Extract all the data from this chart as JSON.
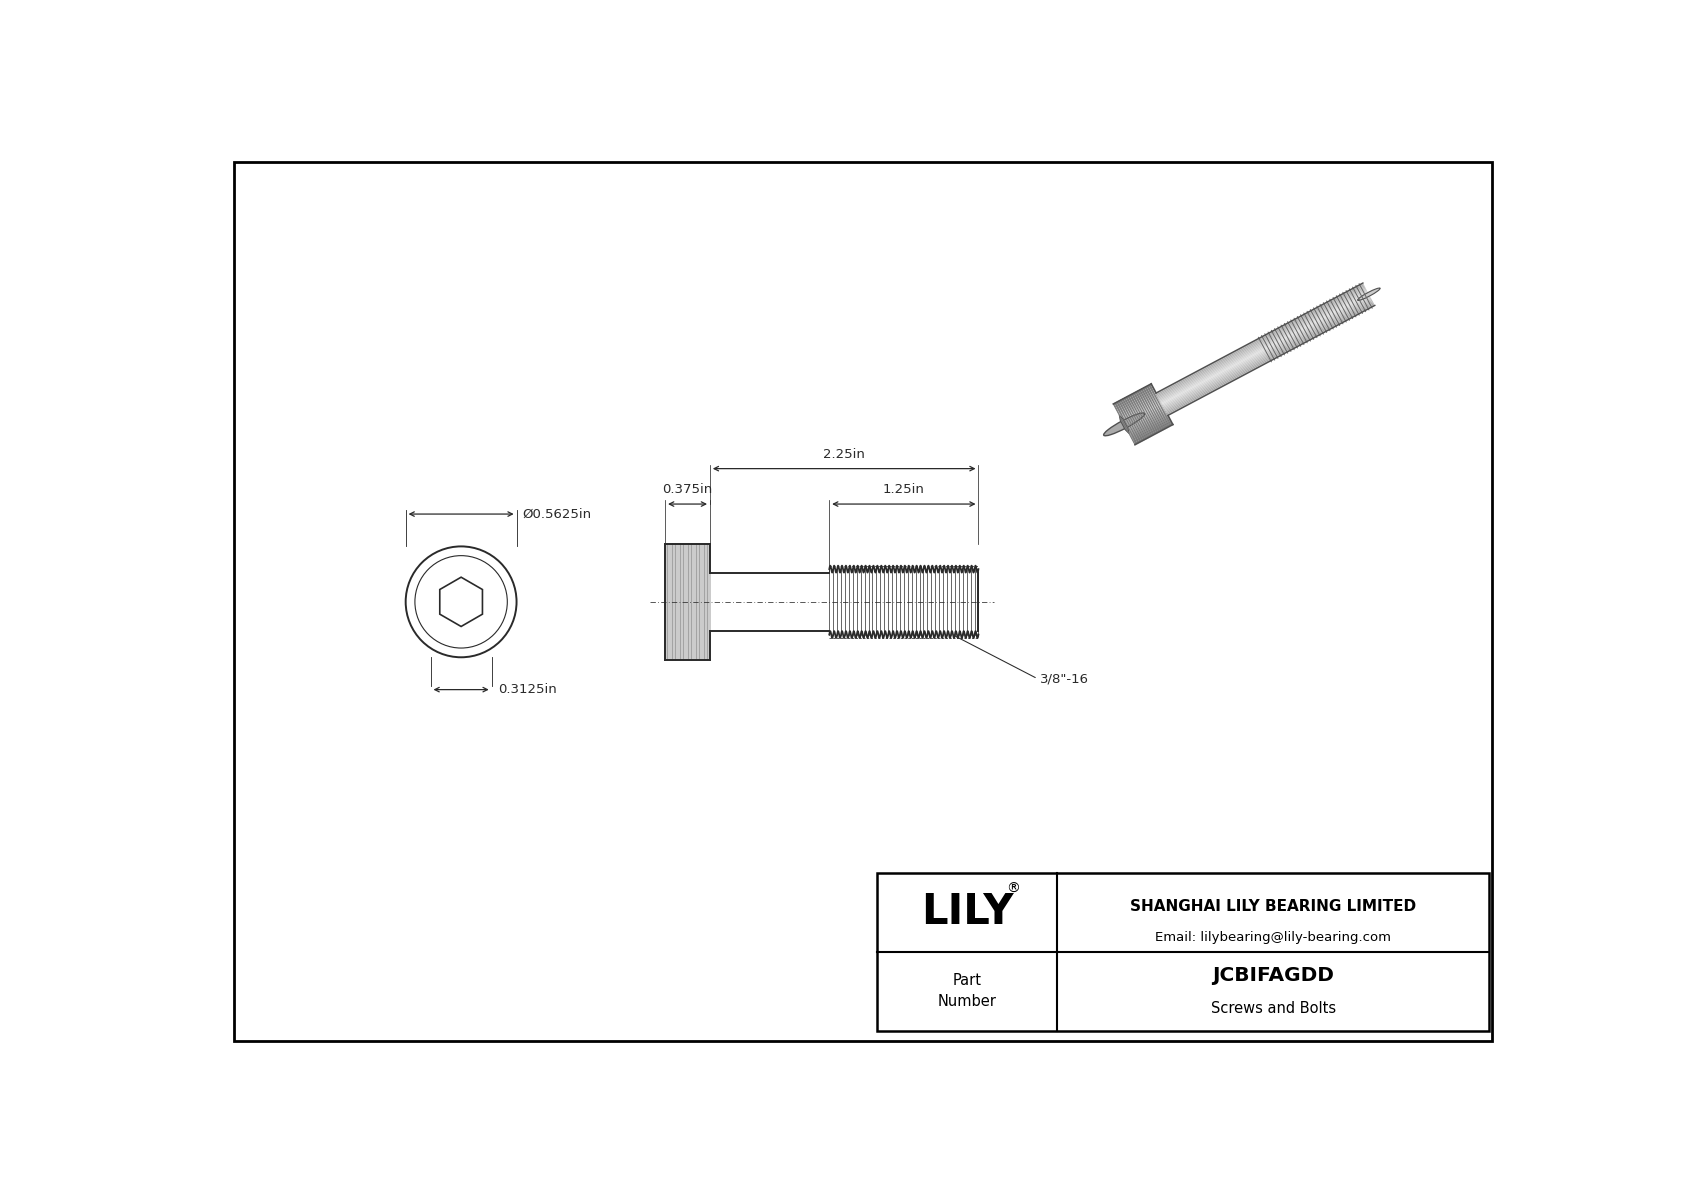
{
  "bg_color": "#ffffff",
  "border_color": "#000000",
  "line_color": "#2a2a2a",
  "title": "JCBIFAGDD",
  "subtitle": "Screws and Bolts",
  "company": "SHANGHAI LILY BEARING LIMITED",
  "email": "Email: lilybearing@lily-bearing.com",
  "part_label": "Part\nNumber",
  "logo": "LILY",
  "diameter_label": "Ø0.5625in",
  "height_label": "0.3125in",
  "head_len_label": "0.375in",
  "shank_len_label": "2.25in",
  "thread_len_label": "1.25in",
  "thread_label": "3/8\"-16"
}
